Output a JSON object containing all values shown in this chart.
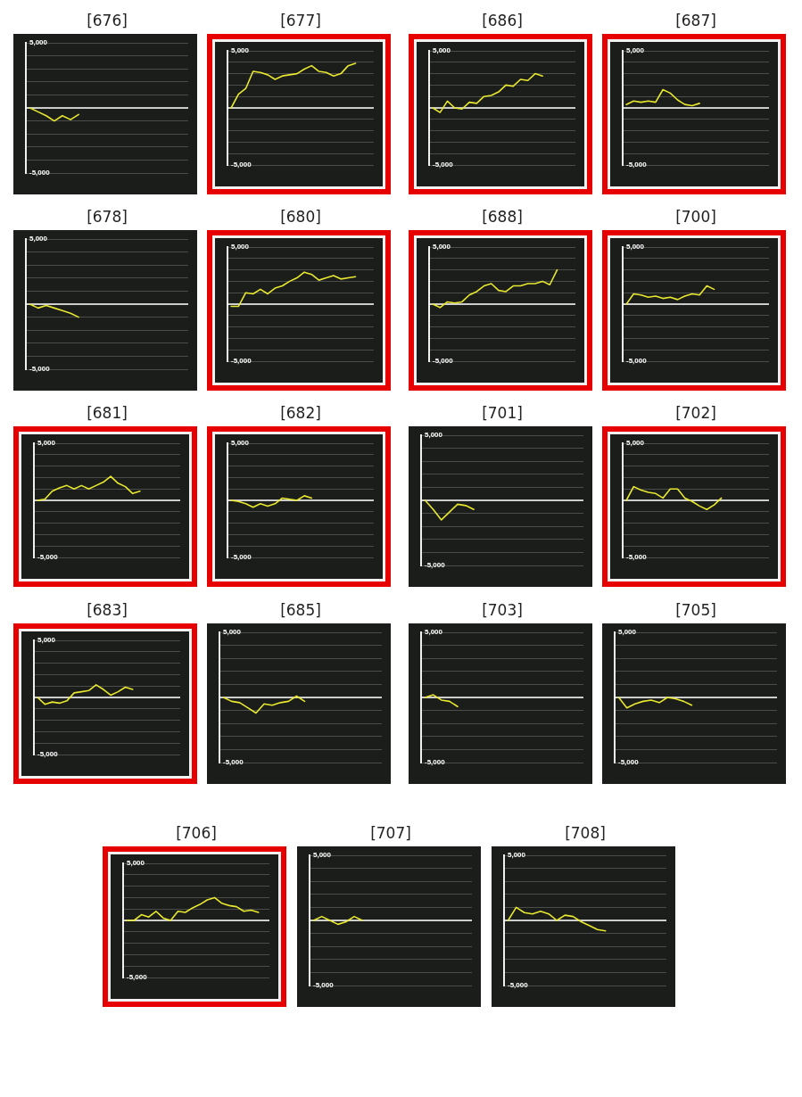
{
  "chart_data": [
    {
      "type": "line",
      "title": "[676]",
      "categories": [
        null,
        null,
        null,
        null,
        null,
        null,
        null,
        null,
        null,
        null,
        null,
        null,
        null,
        null,
        null,
        null,
        null,
        null,
        null,
        null
      ],
      "series": [
        {
          "color": "#e8e82e",
          "values": [
            0,
            -300,
            -600,
            -1000,
            -600,
            -900,
            -500,
            null,
            null,
            null,
            null,
            null,
            null,
            null,
            null,
            null,
            null,
            null,
            null,
            null
          ]
        }
      ],
      "ylim": [
        -5000,
        5000
      ],
      "yticks": [
        {
          "value": -5000,
          "label": "-5,000"
        },
        {
          "value": -4000,
          "label": null
        },
        {
          "value": -3000,
          "label": null
        },
        {
          "value": -2000,
          "label": null
        },
        {
          "value": -1000,
          "label": null
        },
        {
          "value": 0,
          "label": null
        },
        {
          "value": 1000,
          "label": null
        },
        {
          "value": 2000,
          "label": null
        },
        {
          "value": 3000,
          "label": null
        },
        {
          "value": 4000,
          "label": null
        },
        {
          "value": 5000,
          "label": "5,000"
        }
      ],
      "grid": "y",
      "tick_labels": "y",
      "marker": "none",
      "line_style": "solid",
      "ref_lines": [
        {
          "axis": "y",
          "value": 0,
          "color": "#ffffff"
        }
      ]
    },
    {
      "type": "line",
      "title": "[677]",
      "categories": [
        null,
        null,
        null,
        null,
        null,
        null,
        null,
        null,
        null,
        null,
        null,
        null,
        null,
        null,
        null,
        null,
        null,
        null,
        null,
        null
      ],
      "series": [
        {
          "color": "#e8e82e",
          "values": [
            0,
            1200,
            1700,
            3200,
            3100,
            2900,
            2500,
            2800,
            2900,
            3000,
            3400,
            3700,
            3200,
            3100,
            2800,
            3000,
            3700,
            3900,
            null,
            null
          ]
        }
      ],
      "ylim": [
        -5000,
        5000
      ],
      "yticks": [
        {
          "value": -5000,
          "label": "-5,000"
        },
        {
          "value": -4000,
          "label": null
        },
        {
          "value": -3000,
          "label": null
        },
        {
          "value": -2000,
          "label": null
        },
        {
          "value": -1000,
          "label": null
        },
        {
          "value": 0,
          "label": null
        },
        {
          "value": 1000,
          "label": null
        },
        {
          "value": 2000,
          "label": null
        },
        {
          "value": 3000,
          "label": null
        },
        {
          "value": 4000,
          "label": null
        },
        {
          "value": 5000,
          "label": "5,000"
        }
      ],
      "grid": "y",
      "tick_labels": "y",
      "marker": "none",
      "line_style": "solid",
      "ref_lines": [
        {
          "axis": "y",
          "value": 0,
          "color": "#ffffff"
        }
      ]
    },
    {
      "type": "line",
      "title": "[686]",
      "categories": [
        null,
        null,
        null,
        null,
        null,
        null,
        null,
        null,
        null,
        null,
        null,
        null,
        null,
        null,
        null,
        null,
        null,
        null,
        null,
        null
      ],
      "series": [
        {
          "color": "#e8e82e",
          "values": [
            0,
            -400,
            600,
            0,
            -100,
            500,
            400,
            1000,
            1100,
            1400,
            2000,
            1900,
            2500,
            2400,
            3000,
            2800,
            null,
            null,
            null,
            null
          ]
        }
      ],
      "ylim": [
        -5000,
        5000
      ],
      "yticks": [
        {
          "value": -5000,
          "label": "-5,000"
        },
        {
          "value": -4000,
          "label": null
        },
        {
          "value": -3000,
          "label": null
        },
        {
          "value": -2000,
          "label": null
        },
        {
          "value": -1000,
          "label": null
        },
        {
          "value": 0,
          "label": null
        },
        {
          "value": 1000,
          "label": null
        },
        {
          "value": 2000,
          "label": null
        },
        {
          "value": 3000,
          "label": null
        },
        {
          "value": 4000,
          "label": null
        },
        {
          "value": 5000,
          "label": "5,000"
        }
      ],
      "grid": "y",
      "tick_labels": "y",
      "marker": "none",
      "line_style": "solid",
      "ref_lines": [
        {
          "axis": "y",
          "value": 0,
          "color": "#ffffff"
        }
      ]
    },
    {
      "type": "line",
      "title": "[687]",
      "categories": [
        null,
        null,
        null,
        null,
        null,
        null,
        null,
        null,
        null,
        null,
        null,
        null,
        null,
        null,
        null,
        null,
        null,
        null,
        null,
        null
      ],
      "series": [
        {
          "color": "#e8e82e",
          "values": [
            300,
            600,
            500,
            600,
            500,
            1600,
            1300,
            700,
            300,
            200,
            400,
            null,
            null,
            null,
            null,
            null,
            null,
            null,
            null,
            null
          ]
        }
      ],
      "ylim": [
        -5000,
        5000
      ],
      "yticks": [
        {
          "value": -5000,
          "label": "-5,000"
        },
        {
          "value": -4000,
          "label": null
        },
        {
          "value": -3000,
          "label": null
        },
        {
          "value": -2000,
          "label": null
        },
        {
          "value": -1000,
          "label": null
        },
        {
          "value": 0,
          "label": null
        },
        {
          "value": 1000,
          "label": null
        },
        {
          "value": 2000,
          "label": null
        },
        {
          "value": 3000,
          "label": null
        },
        {
          "value": 4000,
          "label": null
        },
        {
          "value": 5000,
          "label": "5,000"
        }
      ],
      "grid": "y",
      "tick_labels": "y",
      "marker": "none",
      "line_style": "solid",
      "ref_lines": [
        {
          "axis": "y",
          "value": 0,
          "color": "#ffffff"
        }
      ]
    },
    {
      "type": "line",
      "title": "[678]",
      "categories": [
        null,
        null,
        null,
        null,
        null,
        null,
        null,
        null,
        null,
        null,
        null,
        null,
        null,
        null,
        null,
        null,
        null,
        null,
        null,
        null
      ],
      "series": [
        {
          "color": "#e8e82e",
          "values": [
            0,
            -300,
            -100,
            -300,
            -500,
            -700,
            -1000,
            null,
            null,
            null,
            null,
            null,
            null,
            null,
            null,
            null,
            null,
            null,
            null,
            null
          ]
        }
      ],
      "ylim": [
        -5000,
        5000
      ],
      "yticks": [
        {
          "value": -5000,
          "label": "-5,000"
        },
        {
          "value": -4000,
          "label": null
        },
        {
          "value": -3000,
          "label": null
        },
        {
          "value": -2000,
          "label": null
        },
        {
          "value": -1000,
          "label": null
        },
        {
          "value": 0,
          "label": null
        },
        {
          "value": 1000,
          "label": null
        },
        {
          "value": 2000,
          "label": null
        },
        {
          "value": 3000,
          "label": null
        },
        {
          "value": 4000,
          "label": null
        },
        {
          "value": 5000,
          "label": "5,000"
        }
      ],
      "grid": "y",
      "tick_labels": "y",
      "marker": "none",
      "line_style": "solid",
      "ref_lines": [
        {
          "axis": "y",
          "value": 0,
          "color": "#ffffff"
        }
      ]
    },
    {
      "type": "line",
      "title": "[680]",
      "categories": [
        null,
        null,
        null,
        null,
        null,
        null,
        null,
        null,
        null,
        null,
        null,
        null,
        null,
        null,
        null,
        null,
        null,
        null,
        null,
        null
      ],
      "series": [
        {
          "color": "#e8e82e",
          "values": [
            -200,
            -200,
            1000,
            900,
            1300,
            900,
            1400,
            1600,
            2000,
            2300,
            2800,
            2600,
            2100,
            2300,
            2500,
            2200,
            2300,
            2400,
            null,
            null
          ]
        }
      ],
      "ylim": [
        -5000,
        5000
      ],
      "yticks": [
        {
          "value": -5000,
          "label": "-5,000"
        },
        {
          "value": -4000,
          "label": null
        },
        {
          "value": -3000,
          "label": null
        },
        {
          "value": -2000,
          "label": null
        },
        {
          "value": -1000,
          "label": null
        },
        {
          "value": 0,
          "label": null
        },
        {
          "value": 1000,
          "label": null
        },
        {
          "value": 2000,
          "label": null
        },
        {
          "value": 3000,
          "label": null
        },
        {
          "value": 4000,
          "label": null
        },
        {
          "value": 5000,
          "label": "5,000"
        }
      ],
      "grid": "y",
      "tick_labels": "y",
      "marker": "none",
      "line_style": "solid",
      "ref_lines": [
        {
          "axis": "y",
          "value": 0,
          "color": "#ffffff"
        }
      ]
    },
    {
      "type": "line",
      "title": "[688]",
      "categories": [
        null,
        null,
        null,
        null,
        null,
        null,
        null,
        null,
        null,
        null,
        null,
        null,
        null,
        null,
        null,
        null,
        null,
        null,
        null,
        null
      ],
      "series": [
        {
          "color": "#e8e82e",
          "values": [
            0,
            -300,
            200,
            100,
            200,
            800,
            1100,
            1600,
            1800,
            1200,
            1100,
            1600,
            1600,
            1800,
            1800,
            2000,
            1700,
            3000,
            null,
            null
          ]
        }
      ],
      "ylim": [
        -5000,
        5000
      ],
      "yticks": [
        {
          "value": -5000,
          "label": "-5,000"
        },
        {
          "value": -4000,
          "label": null
        },
        {
          "value": -3000,
          "label": null
        },
        {
          "value": -2000,
          "label": null
        },
        {
          "value": -1000,
          "label": null
        },
        {
          "value": 0,
          "label": null
        },
        {
          "value": 1000,
          "label": null
        },
        {
          "value": 2000,
          "label": null
        },
        {
          "value": 3000,
          "label": null
        },
        {
          "value": 4000,
          "label": null
        },
        {
          "value": 5000,
          "label": "5,000"
        }
      ],
      "grid": "y",
      "tick_labels": "y",
      "marker": "none",
      "line_style": "solid",
      "ref_lines": [
        {
          "axis": "y",
          "value": 0,
          "color": "#ffffff"
        }
      ]
    },
    {
      "type": "line",
      "title": "[700]",
      "categories": [
        null,
        null,
        null,
        null,
        null,
        null,
        null,
        null,
        null,
        null,
        null,
        null,
        null,
        null,
        null,
        null,
        null,
        null,
        null,
        null
      ],
      "series": [
        {
          "color": "#e8e82e",
          "values": [
            0,
            900,
            800,
            600,
            700,
            500,
            600,
            400,
            700,
            900,
            800,
            1600,
            1300,
            null,
            null,
            null,
            null,
            null,
            null,
            null
          ]
        }
      ],
      "ylim": [
        -5000,
        5000
      ],
      "yticks": [
        {
          "value": -5000,
          "label": "-5,000"
        },
        {
          "value": -4000,
          "label": null
        },
        {
          "value": -3000,
          "label": null
        },
        {
          "value": -2000,
          "label": null
        },
        {
          "value": -1000,
          "label": null
        },
        {
          "value": 0,
          "label": null
        },
        {
          "value": 1000,
          "label": null
        },
        {
          "value": 2000,
          "label": null
        },
        {
          "value": 3000,
          "label": null
        },
        {
          "value": 4000,
          "label": null
        },
        {
          "value": 5000,
          "label": "5,000"
        }
      ],
      "grid": "y",
      "tick_labels": "y",
      "marker": "none",
      "line_style": "solid",
      "ref_lines": [
        {
          "axis": "y",
          "value": 0,
          "color": "#ffffff"
        }
      ]
    },
    {
      "type": "line",
      "title": "[681]",
      "categories": [
        null,
        null,
        null,
        null,
        null,
        null,
        null,
        null,
        null,
        null,
        null,
        null,
        null,
        null,
        null,
        null,
        null,
        null,
        null,
        null
      ],
      "series": [
        {
          "color": "#e8e82e",
          "values": [
            0,
            100,
            800,
            1100,
            1300,
            1000,
            1300,
            1000,
            1300,
            1600,
            2100,
            1500,
            1200,
            600,
            800,
            null,
            null,
            null,
            null,
            null
          ]
        }
      ],
      "ylim": [
        -5000,
        5000
      ],
      "yticks": [
        {
          "value": -5000,
          "label": "-5,000"
        },
        {
          "value": -4000,
          "label": null
        },
        {
          "value": -3000,
          "label": null
        },
        {
          "value": -2000,
          "label": null
        },
        {
          "value": -1000,
          "label": null
        },
        {
          "value": 0,
          "label": null
        },
        {
          "value": 1000,
          "label": null
        },
        {
          "value": 2000,
          "label": null
        },
        {
          "value": 3000,
          "label": null
        },
        {
          "value": 4000,
          "label": null
        },
        {
          "value": 5000,
          "label": "5,000"
        }
      ],
      "grid": "y",
      "tick_labels": "y",
      "marker": "none",
      "line_style": "solid",
      "ref_lines": [
        {
          "axis": "y",
          "value": 0,
          "color": "#ffffff"
        }
      ]
    },
    {
      "type": "line",
      "title": "[682]",
      "categories": [
        null,
        null,
        null,
        null,
        null,
        null,
        null,
        null,
        null,
        null,
        null,
        null,
        null,
        null,
        null,
        null,
        null,
        null,
        null,
        null
      ],
      "series": [
        {
          "color": "#e8e82e",
          "values": [
            0,
            -100,
            -300,
            -600,
            -300,
            -500,
            -300,
            200,
            100,
            0,
            400,
            200,
            null,
            null,
            null,
            null,
            null,
            null,
            null,
            null
          ]
        }
      ],
      "ylim": [
        -5000,
        5000
      ],
      "yticks": [
        {
          "value": -5000,
          "label": "-5,000"
        },
        {
          "value": -4000,
          "label": null
        },
        {
          "value": -3000,
          "label": null
        },
        {
          "value": -2000,
          "label": null
        },
        {
          "value": -1000,
          "label": null
        },
        {
          "value": 0,
          "label": null
        },
        {
          "value": 1000,
          "label": null
        },
        {
          "value": 2000,
          "label": null
        },
        {
          "value": 3000,
          "label": null
        },
        {
          "value": 4000,
          "label": null
        },
        {
          "value": 5000,
          "label": "5,000"
        }
      ],
      "grid": "y",
      "tick_labels": "y",
      "marker": "none",
      "line_style": "solid",
      "ref_lines": [
        {
          "axis": "y",
          "value": 0,
          "color": "#ffffff"
        }
      ]
    },
    {
      "type": "line",
      "title": "[701]",
      "categories": [
        null,
        null,
        null,
        null,
        null,
        null,
        null,
        null,
        null,
        null,
        null,
        null,
        null,
        null,
        null,
        null,
        null,
        null,
        null,
        null
      ],
      "series": [
        {
          "color": "#e8e82e",
          "values": [
            0,
            -700,
            -1500,
            -900,
            -300,
            -400,
            -700,
            null,
            null,
            null,
            null,
            null,
            null,
            null,
            null,
            null,
            null,
            null,
            null,
            null
          ]
        }
      ],
      "ylim": [
        -5000,
        5000
      ],
      "yticks": [
        {
          "value": -5000,
          "label": "-5,000"
        },
        {
          "value": -4000,
          "label": null
        },
        {
          "value": -3000,
          "label": null
        },
        {
          "value": -2000,
          "label": null
        },
        {
          "value": -1000,
          "label": null
        },
        {
          "value": 0,
          "label": null
        },
        {
          "value": 1000,
          "label": null
        },
        {
          "value": 2000,
          "label": null
        },
        {
          "value": 3000,
          "label": null
        },
        {
          "value": 4000,
          "label": null
        },
        {
          "value": 5000,
          "label": "5,000"
        }
      ],
      "grid": "y",
      "tick_labels": "y",
      "marker": "none",
      "line_style": "solid",
      "ref_lines": [
        {
          "axis": "y",
          "value": 0,
          "color": "#ffffff"
        }
      ]
    },
    {
      "type": "line",
      "title": "[702]",
      "categories": [
        null,
        null,
        null,
        null,
        null,
        null,
        null,
        null,
        null,
        null,
        null,
        null,
        null,
        null,
        null,
        null,
        null,
        null,
        null,
        null
      ],
      "series": [
        {
          "color": "#e8e82e",
          "values": [
            0,
            1200,
            900,
            700,
            600,
            200,
            1000,
            1000,
            200,
            -100,
            -500,
            -800,
            -400,
            200,
            null,
            null,
            null,
            null,
            null,
            null
          ]
        }
      ],
      "ylim": [
        -5000,
        5000
      ],
      "yticks": [
        {
          "value": -5000,
          "label": "-5,000"
        },
        {
          "value": -4000,
          "label": null
        },
        {
          "value": -3000,
          "label": null
        },
        {
          "value": -2000,
          "label": null
        },
        {
          "value": -1000,
          "label": null
        },
        {
          "value": 0,
          "label": null
        },
        {
          "value": 1000,
          "label": null
        },
        {
          "value": 2000,
          "label": null
        },
        {
          "value": 3000,
          "label": null
        },
        {
          "value": 4000,
          "label": null
        },
        {
          "value": 5000,
          "label": "5,000"
        }
      ],
      "grid": "y",
      "tick_labels": "y",
      "marker": "none",
      "line_style": "solid",
      "ref_lines": [
        {
          "axis": "y",
          "value": 0,
          "color": "#ffffff"
        }
      ]
    },
    {
      "type": "line",
      "title": "[683]",
      "categories": [
        null,
        null,
        null,
        null,
        null,
        null,
        null,
        null,
        null,
        null,
        null,
        null,
        null,
        null,
        null,
        null,
        null,
        null,
        null,
        null
      ],
      "series": [
        {
          "color": "#e8e82e",
          "values": [
            0,
            -600,
            -400,
            -500,
            -300,
            400,
            500,
            600,
            1100,
            700,
            200,
            500,
            900,
            700,
            null,
            null,
            null,
            null,
            null,
            null
          ]
        }
      ],
      "ylim": [
        -5000,
        5000
      ],
      "yticks": [
        {
          "value": -5000,
          "label": "-5,000"
        },
        {
          "value": -4000,
          "label": null
        },
        {
          "value": -3000,
          "label": null
        },
        {
          "value": -2000,
          "label": null
        },
        {
          "value": -1000,
          "label": null
        },
        {
          "value": 0,
          "label": null
        },
        {
          "value": 1000,
          "label": null
        },
        {
          "value": 2000,
          "label": null
        },
        {
          "value": 3000,
          "label": null
        },
        {
          "value": 4000,
          "label": null
        },
        {
          "value": 5000,
          "label": "5,000"
        }
      ],
      "grid": "y",
      "tick_labels": "y",
      "marker": "none",
      "line_style": "solid",
      "ref_lines": [
        {
          "axis": "y",
          "value": 0,
          "color": "#ffffff"
        }
      ]
    },
    {
      "type": "line",
      "title": "[685]",
      "categories": [
        null,
        null,
        null,
        null,
        null,
        null,
        null,
        null,
        null,
        null,
        null,
        null,
        null,
        null,
        null,
        null,
        null,
        null,
        null,
        null
      ],
      "series": [
        {
          "color": "#e8e82e",
          "values": [
            0,
            -300,
            -400,
            -800,
            -1200,
            -500,
            -600,
            -400,
            -300,
            100,
            -300,
            null,
            null,
            null,
            null,
            null,
            null,
            null,
            null,
            null
          ]
        }
      ],
      "ylim": [
        -5000,
        5000
      ],
      "yticks": [
        {
          "value": -5000,
          "label": "-5,000"
        },
        {
          "value": -4000,
          "label": null
        },
        {
          "value": -3000,
          "label": null
        },
        {
          "value": -2000,
          "label": null
        },
        {
          "value": -1000,
          "label": null
        },
        {
          "value": 0,
          "label": null
        },
        {
          "value": 1000,
          "label": null
        },
        {
          "value": 2000,
          "label": null
        },
        {
          "value": 3000,
          "label": null
        },
        {
          "value": 4000,
          "label": null
        },
        {
          "value": 5000,
          "label": "5,000"
        }
      ],
      "grid": "y",
      "tick_labels": "y",
      "marker": "none",
      "line_style": "solid",
      "ref_lines": [
        {
          "axis": "y",
          "value": 0,
          "color": "#ffffff"
        }
      ]
    },
    {
      "type": "line",
      "title": "[703]",
      "categories": [
        null,
        null,
        null,
        null,
        null,
        null,
        null,
        null,
        null,
        null,
        null,
        null,
        null,
        null,
        null,
        null,
        null,
        null,
        null,
        null
      ],
      "series": [
        {
          "color": "#e8e82e",
          "values": [
            0,
            200,
            -200,
            -300,
            -700,
            null,
            null,
            null,
            null,
            null,
            null,
            null,
            null,
            null,
            null,
            null,
            null,
            null,
            null,
            null
          ]
        }
      ],
      "ylim": [
        -5000,
        5000
      ],
      "yticks": [
        {
          "value": -5000,
          "label": "-5,000"
        },
        {
          "value": -4000,
          "label": null
        },
        {
          "value": -3000,
          "label": null
        },
        {
          "value": -2000,
          "label": null
        },
        {
          "value": -1000,
          "label": null
        },
        {
          "value": 0,
          "label": null
        },
        {
          "value": 1000,
          "label": null
        },
        {
          "value": 2000,
          "label": null
        },
        {
          "value": 3000,
          "label": null
        },
        {
          "value": 4000,
          "label": null
        },
        {
          "value": 5000,
          "label": "5,000"
        }
      ],
      "grid": "y",
      "tick_labels": "y",
      "marker": "none",
      "line_style": "solid",
      "ref_lines": [
        {
          "axis": "y",
          "value": 0,
          "color": "#ffffff"
        }
      ]
    },
    {
      "type": "line",
      "title": "[705]",
      "categories": [
        null,
        null,
        null,
        null,
        null,
        null,
        null,
        null,
        null,
        null,
        null,
        null,
        null,
        null,
        null,
        null,
        null,
        null,
        null,
        null
      ],
      "series": [
        {
          "color": "#e8e82e",
          "values": [
            0,
            -800,
            -500,
            -300,
            -200,
            -400,
            0,
            -100,
            -300,
            -600,
            null,
            null,
            null,
            null,
            null,
            null,
            null,
            null,
            null,
            null
          ]
        }
      ],
      "ylim": [
        -5000,
        5000
      ],
      "yticks": [
        {
          "value": -5000,
          "label": "-5,000"
        },
        {
          "value": -4000,
          "label": null
        },
        {
          "value": -3000,
          "label": null
        },
        {
          "value": -2000,
          "label": null
        },
        {
          "value": -1000,
          "label": null
        },
        {
          "value": 0,
          "label": null
        },
        {
          "value": 1000,
          "label": null
        },
        {
          "value": 2000,
          "label": null
        },
        {
          "value": 3000,
          "label": null
        },
        {
          "value": 4000,
          "label": null
        },
        {
          "value": 5000,
          "label": "5,000"
        }
      ],
      "grid": "y",
      "tick_labels": "y",
      "marker": "none",
      "line_style": "solid",
      "ref_lines": [
        {
          "axis": "y",
          "value": 0,
          "color": "#ffffff"
        }
      ]
    },
    {
      "type": "line",
      "title": "[706]",
      "categories": [
        null,
        null,
        null,
        null,
        null,
        null,
        null,
        null,
        null,
        null,
        null,
        null,
        null,
        null,
        null,
        null,
        null,
        null,
        null,
        null
      ],
      "series": [
        {
          "color": "#e8e82e",
          "values": [
            0,
            0,
            500,
            300,
            800,
            200,
            0,
            800,
            700,
            1100,
            1400,
            1800,
            2000,
            1500,
            1300,
            1200,
            800,
            900,
            700,
            null
          ]
        }
      ],
      "ylim": [
        -5000,
        5000
      ],
      "yticks": [
        {
          "value": -5000,
          "label": "-5,000"
        },
        {
          "value": -4000,
          "label": null
        },
        {
          "value": -3000,
          "label": null
        },
        {
          "value": -2000,
          "label": null
        },
        {
          "value": -1000,
          "label": null
        },
        {
          "value": 0,
          "label": null
        },
        {
          "value": 1000,
          "label": null
        },
        {
          "value": 2000,
          "label": null
        },
        {
          "value": 3000,
          "label": null
        },
        {
          "value": 4000,
          "label": null
        },
        {
          "value": 5000,
          "label": "5,000"
        }
      ],
      "grid": "y",
      "tick_labels": "y",
      "marker": "none",
      "line_style": "solid",
      "ref_lines": [
        {
          "axis": "y",
          "value": 0,
          "color": "#ffffff"
        }
      ]
    },
    {
      "type": "line",
      "title": "[707]",
      "categories": [
        null,
        null,
        null,
        null,
        null,
        null,
        null,
        null,
        null,
        null,
        null,
        null,
        null,
        null,
        null,
        null,
        null,
        null,
        null,
        null
      ],
      "series": [
        {
          "color": "#e8e82e",
          "values": [
            0,
            300,
            0,
            -300,
            -100,
            300,
            0,
            null,
            null,
            null,
            null,
            null,
            null,
            null,
            null,
            null,
            null,
            null,
            null,
            null
          ]
        }
      ],
      "ylim": [
        -5000,
        5000
      ],
      "yticks": [
        {
          "value": -5000,
          "label": "-5,000"
        },
        {
          "value": -4000,
          "label": null
        },
        {
          "value": -3000,
          "label": null
        },
        {
          "value": -2000,
          "label": null
        },
        {
          "value": -1000,
          "label": null
        },
        {
          "value": 0,
          "label": null
        },
        {
          "value": 1000,
          "label": null
        },
        {
          "value": 2000,
          "label": null
        },
        {
          "value": 3000,
          "label": null
        },
        {
          "value": 4000,
          "label": null
        },
        {
          "value": 5000,
          "label": "5,000"
        }
      ],
      "grid": "y",
      "tick_labels": "y",
      "marker": "none",
      "line_style": "solid",
      "ref_lines": [
        {
          "axis": "y",
          "value": 0,
          "color": "#ffffff"
        }
      ]
    },
    {
      "type": "line",
      "title": "[708]",
      "categories": [
        null,
        null,
        null,
        null,
        null,
        null,
        null,
        null,
        null,
        null,
        null,
        null,
        null,
        null,
        null,
        null,
        null,
        null,
        null,
        null
      ],
      "series": [
        {
          "color": "#e8e82e",
          "values": [
            0,
            1000,
            600,
            500,
            700,
            500,
            0,
            400,
            300,
            -100,
            -400,
            -700,
            -800,
            null,
            null,
            null,
            null,
            null,
            null,
            null
          ]
        }
      ],
      "ylim": [
        -5000,
        5000
      ],
      "yticks": [
        {
          "value": -5000,
          "label": "-5,000"
        },
        {
          "value": -4000,
          "label": null
        },
        {
          "value": -3000,
          "label": null
        },
        {
          "value": -2000,
          "label": null
        },
        {
          "value": -1000,
          "label": null
        },
        {
          "value": 0,
          "label": null
        },
        {
          "value": 1000,
          "label": null
        },
        {
          "value": 2000,
          "label": null
        },
        {
          "value": 3000,
          "label": null
        },
        {
          "value": 4000,
          "label": null
        },
        {
          "value": 5000,
          "label": "5,000"
        }
      ],
      "grid": "y",
      "tick_labels": "y",
      "marker": "none",
      "line_style": "solid",
      "ref_lines": [
        {
          "axis": "y",
          "value": 0,
          "color": "#ffffff"
        }
      ]
    }
  ]
}
